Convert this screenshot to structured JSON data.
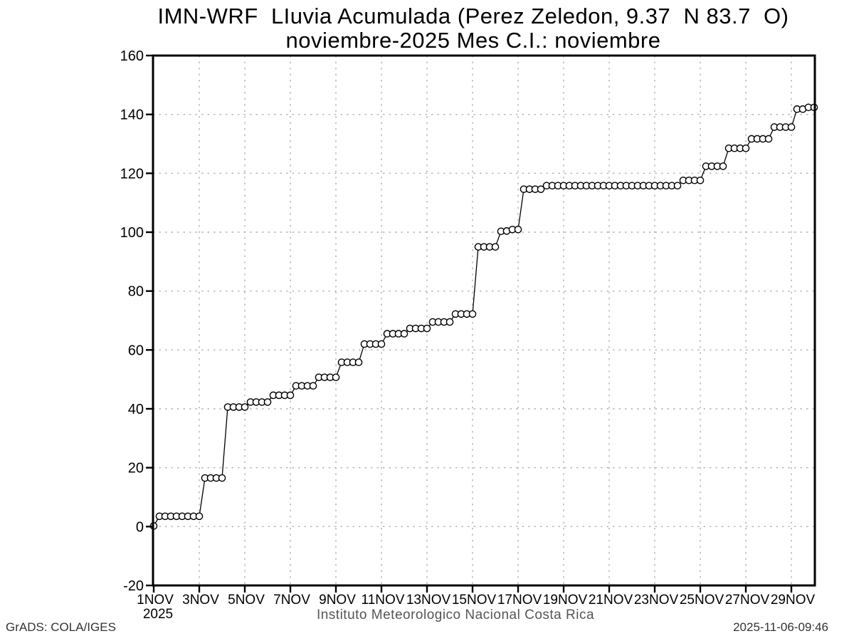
{
  "title": {
    "line1": "IMN-WRF  LIuvia Acumulada (Perez Zeledon, 9.37  N 83.7  O)",
    "line2": "noviembre-2025 Mes C.I.: noviembre"
  },
  "xlabel": "Instituto Meteorologico Nacional Costa Rica",
  "footer": {
    "left": "GrADS: COLA/IGES",
    "right": "2025-11-06-09:46"
  },
  "colors": {
    "axis": "#000000",
    "grid": "#b3b3b3",
    "line": "#000000",
    "marker_fill": "#ffffff",
    "caption_text": "#555555",
    "footer_text": "#333333"
  },
  "chart_data": {
    "type": "line",
    "title": "IMN-WRF accumulated rainfall, Perez Zeledon (9.37 N 83.7 O), noviembre 2025",
    "xlabel": "Instituto Meteorologico Nacional Costa Rica",
    "ylabel": "",
    "x_unit": "day of November 2025 (6-hourly steps)",
    "xlim": [
      1,
      30.06
    ],
    "ylim": [
      -20,
      160
    ],
    "grid": "dashed",
    "legend": "none",
    "marker": "open-circle",
    "yticks": [
      -20,
      0,
      20,
      40,
      60,
      80,
      100,
      120,
      140,
      160
    ],
    "x_year_label": "2025",
    "xticks": [
      {
        "day": 1,
        "label": "1NOV"
      },
      {
        "day": 3,
        "label": "3NOV"
      },
      {
        "day": 5,
        "label": "5NOV"
      },
      {
        "day": 7,
        "label": "7NOV"
      },
      {
        "day": 9,
        "label": "9NOV"
      },
      {
        "day": 11,
        "label": "11NOV"
      },
      {
        "day": 13,
        "label": "13NOV"
      },
      {
        "day": 15,
        "label": "15NOV"
      },
      {
        "day": 17,
        "label": "17NOV"
      },
      {
        "day": 19,
        "label": "19NOV"
      },
      {
        "day": 21,
        "label": "21NOV"
      },
      {
        "day": 23,
        "label": "23NOV"
      },
      {
        "day": 25,
        "label": "25NOV"
      },
      {
        "day": 27,
        "label": "27NOV"
      },
      {
        "day": 29,
        "label": "29NOV"
      }
    ],
    "series": [
      {
        "name": "Lluvia acumulada (mm)",
        "points": [
          [
            1.0,
            0.2
          ],
          [
            1.25,
            3.5
          ],
          [
            1.5,
            3.5
          ],
          [
            1.75,
            3.5
          ],
          [
            2.0,
            3.5
          ],
          [
            2.25,
            3.5
          ],
          [
            2.5,
            3.5
          ],
          [
            2.75,
            3.5
          ],
          [
            3.0,
            3.5
          ],
          [
            3.25,
            16.5
          ],
          [
            3.5,
            16.5
          ],
          [
            3.75,
            16.5
          ],
          [
            4.0,
            16.5
          ],
          [
            4.25,
            40.6
          ],
          [
            4.5,
            40.6
          ],
          [
            4.75,
            40.6
          ],
          [
            5.0,
            40.6
          ],
          [
            5.25,
            42.3
          ],
          [
            5.5,
            42.3
          ],
          [
            5.75,
            42.3
          ],
          [
            6.0,
            42.3
          ],
          [
            6.25,
            44.6
          ],
          [
            6.5,
            44.6
          ],
          [
            6.75,
            44.6
          ],
          [
            7.0,
            44.6
          ],
          [
            7.25,
            47.8
          ],
          [
            7.5,
            47.8
          ],
          [
            7.75,
            47.8
          ],
          [
            8.0,
            47.8
          ],
          [
            8.25,
            50.7
          ],
          [
            8.5,
            50.7
          ],
          [
            8.75,
            50.7
          ],
          [
            9.0,
            50.7
          ],
          [
            9.25,
            55.8
          ],
          [
            9.5,
            55.8
          ],
          [
            9.75,
            55.8
          ],
          [
            10.0,
            55.8
          ],
          [
            10.25,
            62.0
          ],
          [
            10.5,
            62.0
          ],
          [
            10.75,
            62.0
          ],
          [
            11.0,
            62.0
          ],
          [
            11.25,
            65.5
          ],
          [
            11.5,
            65.5
          ],
          [
            11.75,
            65.5
          ],
          [
            12.0,
            65.5
          ],
          [
            12.25,
            67.3
          ],
          [
            12.5,
            67.3
          ],
          [
            12.75,
            67.3
          ],
          [
            13.0,
            67.3
          ],
          [
            13.25,
            69.5
          ],
          [
            13.5,
            69.5
          ],
          [
            13.75,
            69.5
          ],
          [
            14.0,
            69.5
          ],
          [
            14.25,
            72.2
          ],
          [
            14.5,
            72.2
          ],
          [
            14.75,
            72.2
          ],
          [
            15.0,
            72.2
          ],
          [
            15.25,
            95.0
          ],
          [
            15.5,
            95.0
          ],
          [
            15.75,
            95.0
          ],
          [
            16.0,
            95.0
          ],
          [
            16.25,
            100.3
          ],
          [
            16.5,
            100.4
          ],
          [
            16.75,
            100.9
          ],
          [
            17.0,
            100.9
          ],
          [
            17.25,
            114.6
          ],
          [
            17.5,
            114.6
          ],
          [
            17.75,
            114.6
          ],
          [
            18.0,
            114.6
          ],
          [
            18.25,
            115.8
          ],
          [
            18.5,
            115.8
          ],
          [
            18.75,
            115.8
          ],
          [
            19.0,
            115.8
          ],
          [
            19.25,
            115.8
          ],
          [
            19.5,
            115.8
          ],
          [
            19.75,
            115.8
          ],
          [
            20.0,
            115.8
          ],
          [
            20.25,
            115.8
          ],
          [
            20.5,
            115.8
          ],
          [
            20.75,
            115.8
          ],
          [
            21.0,
            115.8
          ],
          [
            21.25,
            115.8
          ],
          [
            21.5,
            115.8
          ],
          [
            21.75,
            115.8
          ],
          [
            22.0,
            115.8
          ],
          [
            22.25,
            115.8
          ],
          [
            22.5,
            115.8
          ],
          [
            22.75,
            115.8
          ],
          [
            23.0,
            115.8
          ],
          [
            23.25,
            115.8
          ],
          [
            23.5,
            115.8
          ],
          [
            23.75,
            115.8
          ],
          [
            24.0,
            115.8
          ],
          [
            24.25,
            117.6
          ],
          [
            24.5,
            117.6
          ],
          [
            24.75,
            117.6
          ],
          [
            25.0,
            117.6
          ],
          [
            25.25,
            122.4
          ],
          [
            25.5,
            122.4
          ],
          [
            25.75,
            122.4
          ],
          [
            26.0,
            122.4
          ],
          [
            26.25,
            128.5
          ],
          [
            26.5,
            128.5
          ],
          [
            26.75,
            128.5
          ],
          [
            27.0,
            128.5
          ],
          [
            27.25,
            131.7
          ],
          [
            27.5,
            131.7
          ],
          [
            27.75,
            131.7
          ],
          [
            28.0,
            131.7
          ],
          [
            28.25,
            135.7
          ],
          [
            28.5,
            135.7
          ],
          [
            28.75,
            135.7
          ],
          [
            29.0,
            135.7
          ],
          [
            29.25,
            141.8
          ],
          [
            29.5,
            141.8
          ],
          [
            29.75,
            142.4
          ],
          [
            30.0,
            142.4
          ]
        ]
      }
    ]
  }
}
